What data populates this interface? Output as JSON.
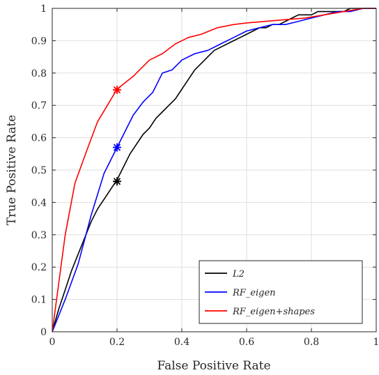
{
  "chart_data": {
    "type": "line",
    "title": "",
    "xlabel": "False Positive Rate",
    "ylabel": "True Positive Rate",
    "xlim": [
      0,
      1
    ],
    "ylim": [
      0,
      1
    ],
    "xticks": [
      "0",
      "0.2",
      "0.4",
      "0.6",
      "0.8",
      "1"
    ],
    "yticks": [
      "0",
      "0.1",
      "0.2",
      "0.3",
      "0.4",
      "0.5",
      "0.6",
      "0.7",
      "0.8",
      "0.9",
      "1"
    ],
    "grid": true,
    "legend_position": "bottom-right",
    "series": [
      {
        "name": "L2",
        "color": "#000000",
        "x": [
          0,
          0.02,
          0.04,
          0.06,
          0.08,
          0.1,
          0.12,
          0.14,
          0.16,
          0.18,
          0.2,
          0.22,
          0.24,
          0.26,
          0.28,
          0.3,
          0.32,
          0.34,
          0.36,
          0.38,
          0.4,
          0.42,
          0.44,
          0.46,
          0.48,
          0.5,
          0.52,
          0.54,
          0.56,
          0.58,
          0.6,
          0.62,
          0.64,
          0.66,
          0.68,
          0.7,
          0.72,
          0.74,
          0.76,
          0.78,
          0.8,
          0.82,
          0.84,
          0.86,
          0.88,
          0.9,
          0.92,
          0.94,
          0.96,
          0.98,
          1
        ],
        "y": [
          0,
          0.07,
          0.13,
          0.19,
          0.24,
          0.29,
          0.34,
          0.38,
          0.41,
          0.44,
          0.47,
          0.51,
          0.55,
          0.58,
          0.61,
          0.63,
          0.66,
          0.68,
          0.7,
          0.72,
          0.75,
          0.78,
          0.81,
          0.83,
          0.85,
          0.87,
          0.88,
          0.89,
          0.9,
          0.91,
          0.92,
          0.93,
          0.94,
          0.94,
          0.95,
          0.95,
          0.96,
          0.97,
          0.98,
          0.98,
          0.98,
          0.99,
          0.99,
          0.99,
          0.99,
          0.99,
          1,
          1,
          1,
          1,
          1
        ]
      },
      {
        "name": "RF_eigen",
        "color": "#0000ff",
        "x": [
          0,
          0.04,
          0.08,
          0.12,
          0.16,
          0.2,
          0.25,
          0.28,
          0.31,
          0.34,
          0.37,
          0.4,
          0.44,
          0.48,
          0.52,
          0.56,
          0.6,
          0.64,
          0.68,
          0.72,
          0.76,
          0.8,
          0.84,
          0.88,
          0.92,
          0.96,
          1
        ],
        "y": [
          0,
          0.1,
          0.21,
          0.36,
          0.49,
          0.57,
          0.67,
          0.71,
          0.74,
          0.8,
          0.81,
          0.84,
          0.86,
          0.87,
          0.89,
          0.91,
          0.93,
          0.94,
          0.95,
          0.95,
          0.96,
          0.97,
          0.98,
          0.99,
          0.99,
          1,
          1
        ]
      },
      {
        "name": "RF_eigen+shapes",
        "color": "#ff0000",
        "x": [
          0,
          0.04,
          0.07,
          0.11,
          0.14,
          0.17,
          0.2,
          0.25,
          0.3,
          0.34,
          0.38,
          0.42,
          0.46,
          0.51,
          0.56,
          0.6,
          0.66,
          0.72,
          0.78,
          0.84,
          0.9,
          0.96,
          1
        ],
        "y": [
          0,
          0.3,
          0.46,
          0.57,
          0.65,
          0.7,
          0.75,
          0.79,
          0.84,
          0.86,
          0.89,
          0.91,
          0.92,
          0.94,
          0.95,
          0.955,
          0.96,
          0.965,
          0.97,
          0.98,
          0.99,
          1,
          1
        ]
      }
    ],
    "markers": [
      {
        "series": "L2",
        "x": 0.2,
        "y": 0.465,
        "color": "#000000"
      },
      {
        "series": "RF_eigen",
        "x": 0.2,
        "y": 0.57,
        "color": "#0000ff"
      },
      {
        "series": "RF_eigen+shapes",
        "x": 0.2,
        "y": 0.748,
        "color": "#ff0000"
      }
    ]
  }
}
